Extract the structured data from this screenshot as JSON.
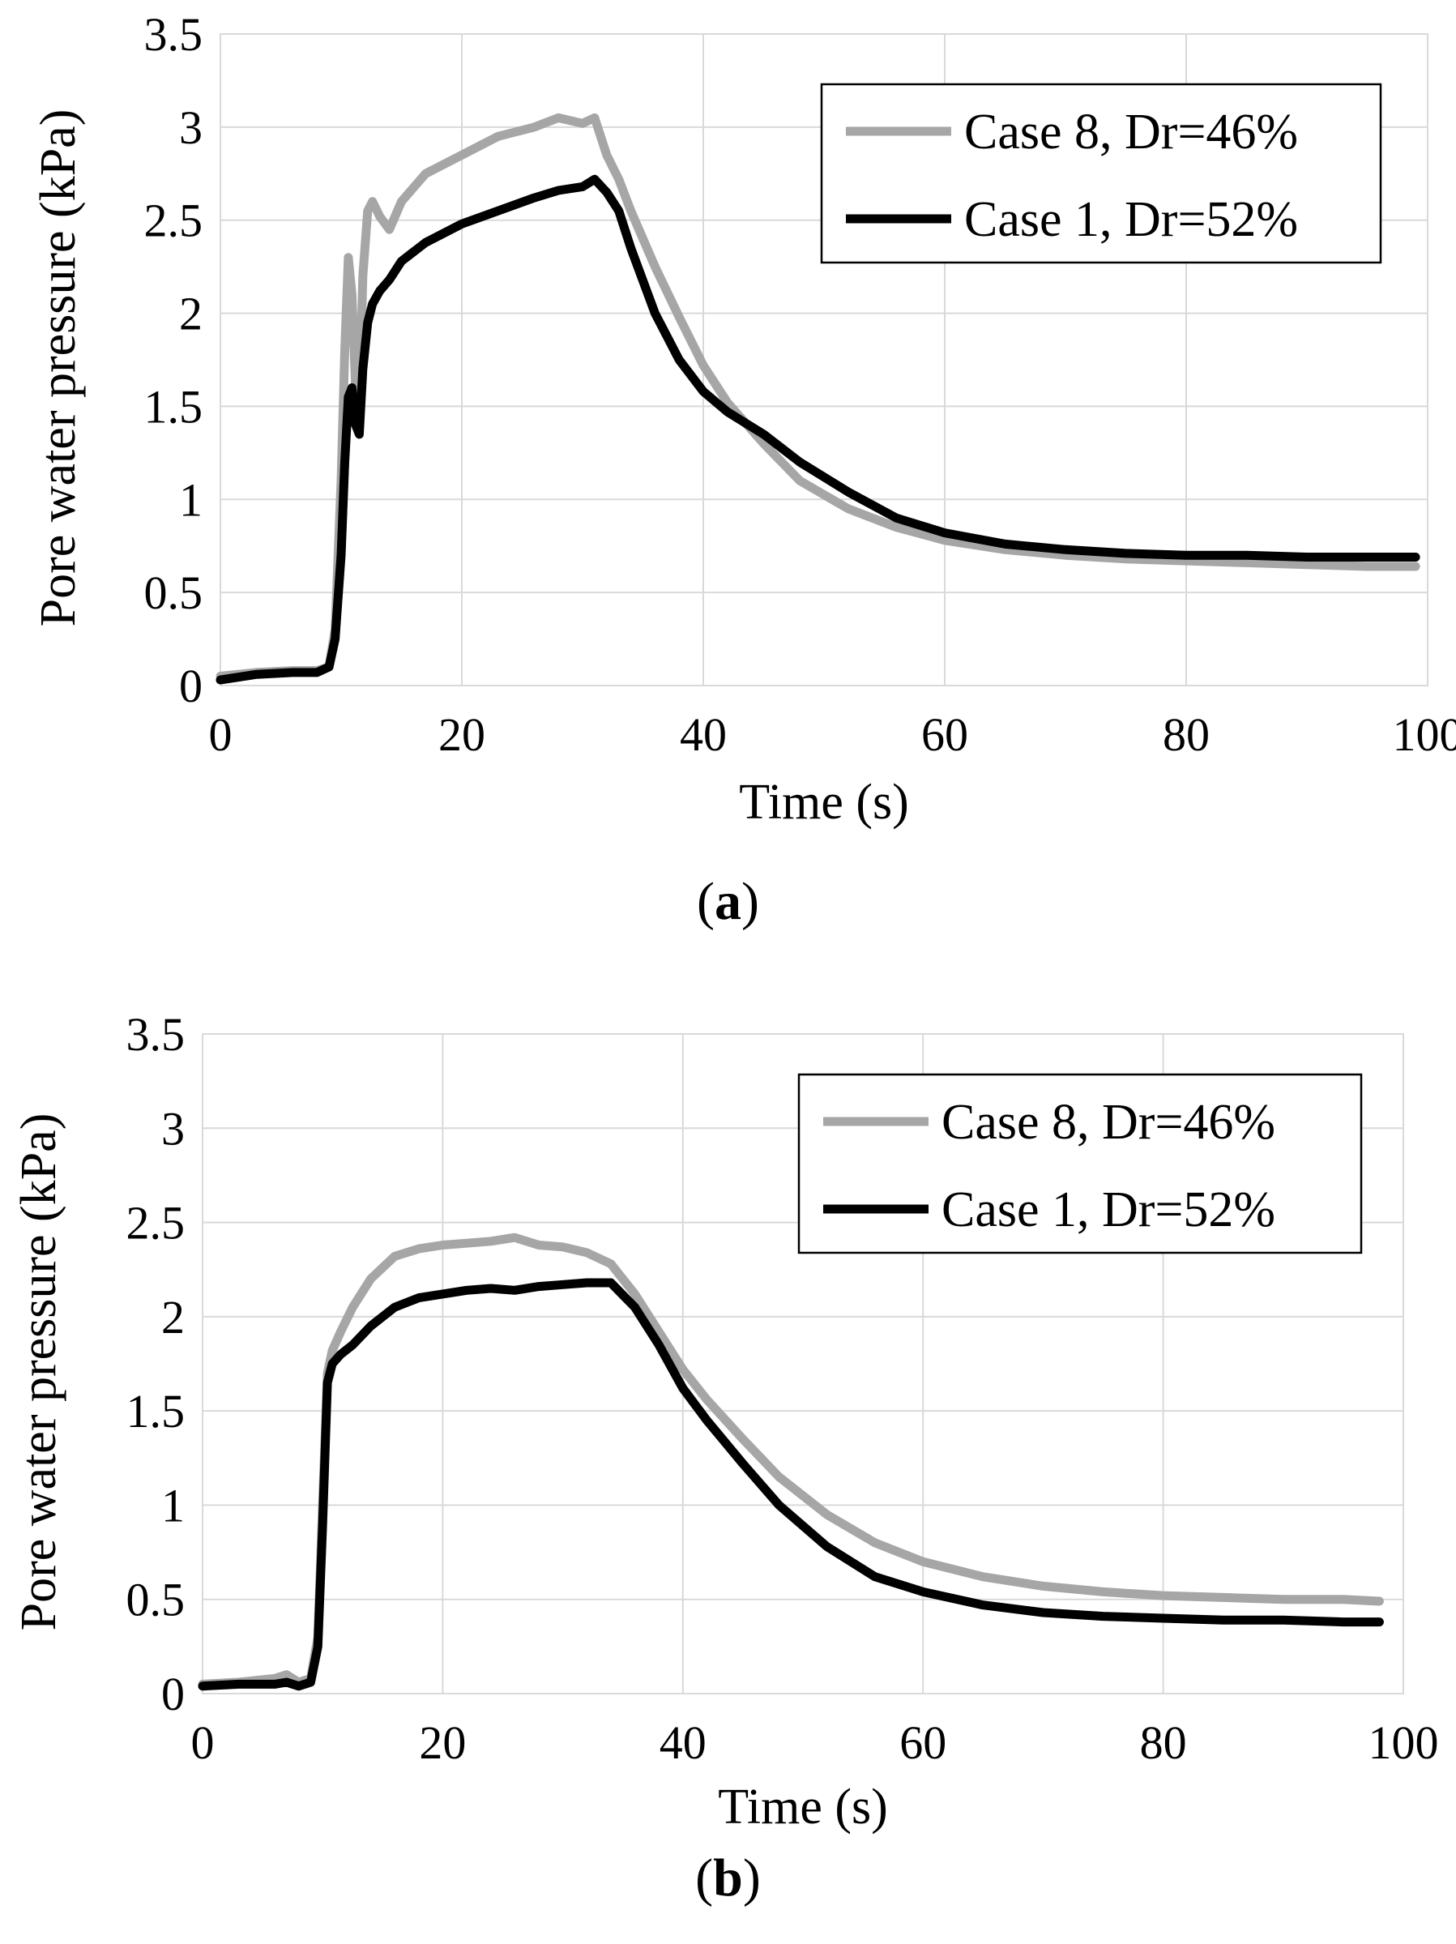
{
  "chart_data": [
    {
      "type": "line",
      "panel_label": "a",
      "xlabel": "Time (s)",
      "ylabel": "Pore water pressure (kPa)",
      "xlim": [
        0,
        100
      ],
      "ylim": [
        0,
        3.5
      ],
      "xticks": [
        "0",
        "20",
        "40",
        "60",
        "80",
        "100"
      ],
      "yticks": [
        "0",
        "0.5",
        "1",
        "1.5",
        "2",
        "2.5",
        "3",
        "3.5"
      ],
      "grid": true,
      "legend_position": "top-right",
      "series": [
        {
          "name": "Case 8, Dr=46%",
          "color": "#a6a6a6",
          "x": [
            0,
            3,
            6,
            8,
            9,
            9.5,
            10,
            10.3,
            10.6,
            10.9,
            11.2,
            11.5,
            11.8,
            12.2,
            12.6,
            13.2,
            14,
            15,
            17,
            20,
            23,
            26,
            28,
            30,
            31,
            32,
            33,
            34,
            36,
            38,
            40,
            42,
            45,
            48,
            52,
            56,
            60,
            65,
            70,
            75,
            80,
            85,
            90,
            95,
            99
          ],
          "y": [
            0.05,
            0.07,
            0.08,
            0.08,
            0.1,
            0.3,
            1.1,
            1.8,
            2.3,
            2.1,
            1.6,
            1.45,
            2.2,
            2.55,
            2.6,
            2.52,
            2.45,
            2.6,
            2.75,
            2.85,
            2.95,
            3.0,
            3.05,
            3.02,
            3.05,
            2.85,
            2.72,
            2.55,
            2.25,
            1.98,
            1.72,
            1.52,
            1.3,
            1.1,
            0.95,
            0.85,
            0.78,
            0.73,
            0.7,
            0.68,
            0.67,
            0.66,
            0.65,
            0.64,
            0.64
          ]
        },
        {
          "name": "Case 1, Dr=52%",
          "color": "#000000",
          "x": [
            0,
            3,
            6,
            8,
            9,
            9.5,
            10,
            10.3,
            10.6,
            10.9,
            11.2,
            11.5,
            11.8,
            12.2,
            12.6,
            13.2,
            14,
            15,
            17,
            20,
            23,
            26,
            28,
            30,
            31,
            32,
            33,
            34,
            36,
            38,
            40,
            42,
            45,
            48,
            52,
            56,
            60,
            65,
            70,
            75,
            80,
            85,
            90,
            95,
            99
          ],
          "y": [
            0.03,
            0.06,
            0.07,
            0.07,
            0.1,
            0.25,
            0.7,
            1.2,
            1.55,
            1.6,
            1.4,
            1.35,
            1.7,
            1.95,
            2.05,
            2.12,
            2.18,
            2.28,
            2.38,
            2.48,
            2.55,
            2.62,
            2.66,
            2.68,
            2.72,
            2.65,
            2.55,
            2.35,
            2.0,
            1.75,
            1.58,
            1.47,
            1.35,
            1.2,
            1.04,
            0.9,
            0.82,
            0.76,
            0.73,
            0.71,
            0.7,
            0.7,
            0.69,
            0.69,
            0.69
          ]
        }
      ]
    },
    {
      "type": "line",
      "panel_label": "b",
      "xlabel": "Time (s)",
      "ylabel": "Pore water pressure (kPa)",
      "xlim": [
        0,
        100
      ],
      "ylim": [
        0,
        3.5
      ],
      "xticks": [
        "0",
        "20",
        "40",
        "60",
        "80",
        "100"
      ],
      "yticks": [
        "0",
        "0.5",
        "1",
        "1.5",
        "2",
        "2.5",
        "3",
        "3.5"
      ],
      "grid": true,
      "legend_position": "top-right",
      "series": [
        {
          "name": "Case 8, Dr=46%",
          "color": "#a6a6a6",
          "x": [
            0,
            3,
            6,
            7,
            8,
            9,
            9.6,
            10,
            10.4,
            10.8,
            11.5,
            12.5,
            14,
            16,
            18,
            20,
            22,
            24,
            26,
            28,
            30,
            32,
            34,
            36,
            38,
            40,
            42,
            45,
            48,
            52,
            56,
            60,
            65,
            70,
            75,
            80,
            85,
            90,
            95,
            98
          ],
          "y": [
            0.05,
            0.06,
            0.08,
            0.1,
            0.06,
            0.08,
            0.3,
            1.0,
            1.7,
            1.82,
            1.92,
            2.05,
            2.2,
            2.32,
            2.36,
            2.38,
            2.39,
            2.4,
            2.42,
            2.38,
            2.37,
            2.34,
            2.28,
            2.12,
            1.92,
            1.72,
            1.56,
            1.35,
            1.15,
            0.95,
            0.8,
            0.7,
            0.62,
            0.57,
            0.54,
            0.52,
            0.51,
            0.5,
            0.5,
            0.49
          ]
        },
        {
          "name": "Case 1, Dr=52%",
          "color": "#000000",
          "x": [
            0,
            3,
            6,
            7,
            8,
            9,
            9.6,
            10,
            10.4,
            10.8,
            11.5,
            12.5,
            14,
            16,
            18,
            20,
            22,
            24,
            26,
            28,
            30,
            32,
            34,
            36,
            38,
            40,
            42,
            45,
            48,
            52,
            56,
            60,
            65,
            70,
            75,
            80,
            85,
            90,
            95,
            98
          ],
          "y": [
            0.04,
            0.05,
            0.05,
            0.06,
            0.04,
            0.06,
            0.25,
            0.9,
            1.65,
            1.75,
            1.8,
            1.85,
            1.95,
            2.05,
            2.1,
            2.12,
            2.14,
            2.15,
            2.14,
            2.16,
            2.17,
            2.18,
            2.18,
            2.05,
            1.85,
            1.62,
            1.45,
            1.22,
            1.0,
            0.78,
            0.62,
            0.54,
            0.47,
            0.43,
            0.41,
            0.4,
            0.39,
            0.39,
            0.38,
            0.38
          ]
        }
      ]
    }
  ],
  "captions": {
    "a": "a",
    "b": "b"
  }
}
